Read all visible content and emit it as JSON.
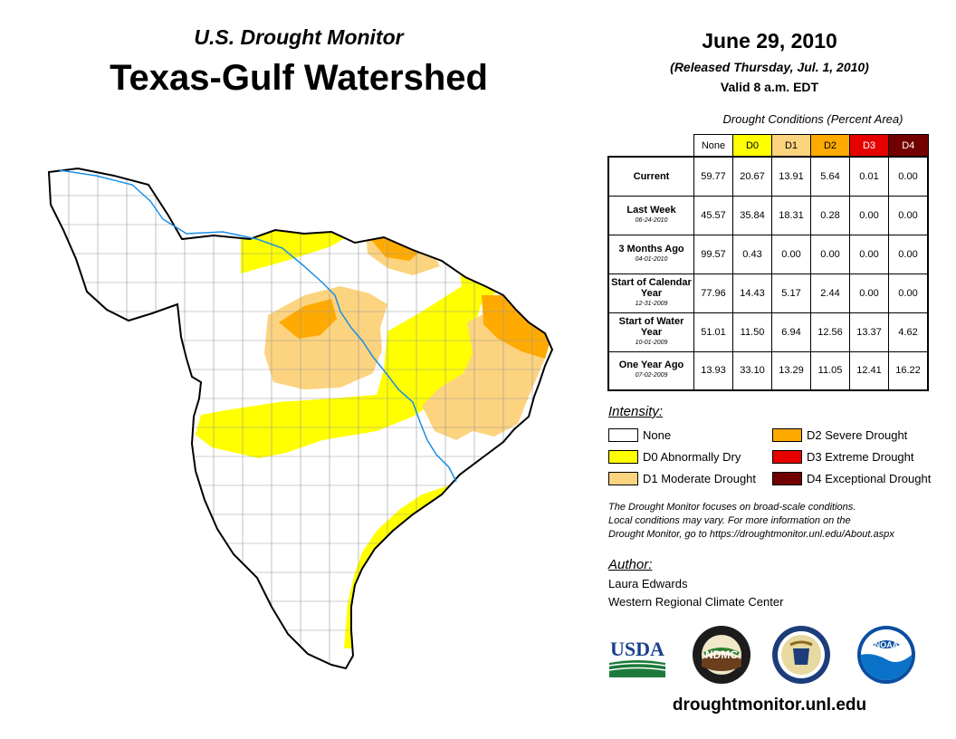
{
  "header": {
    "subtitle": "U.S. Drought Monitor",
    "title": "Texas-Gulf Watershed",
    "date": "June 29, 2010",
    "released": "(Released Thursday, Jul. 1, 2010)",
    "valid": "Valid 8 a.m. EDT"
  },
  "table": {
    "caption": "Drought Conditions (Percent Area)",
    "columns": [
      {
        "label": "None",
        "color": "#ffffff",
        "text_color": "#000000"
      },
      {
        "label": "D0",
        "color": "#ffff00",
        "text_color": "#000000"
      },
      {
        "label": "D1",
        "color": "#fcd37f",
        "text_color": "#000000"
      },
      {
        "label": "D2",
        "color": "#ffaa00",
        "text_color": "#000000"
      },
      {
        "label": "D3",
        "color": "#e60000",
        "text_color": "#ffffff"
      },
      {
        "label": "D4",
        "color": "#730000",
        "text_color": "#ffffff"
      }
    ],
    "rows": [
      {
        "label": "Current",
        "sublabel": "",
        "values": [
          "59.77",
          "20.67",
          "13.91",
          "5.64",
          "0.01",
          "0.00"
        ]
      },
      {
        "label": "Last Week",
        "sublabel": "06-24-2010",
        "values": [
          "45.57",
          "35.84",
          "18.31",
          "0.28",
          "0.00",
          "0.00"
        ]
      },
      {
        "label": "3 Months Ago",
        "sublabel": "04-01-2010",
        "values": [
          "99.57",
          "0.43",
          "0.00",
          "0.00",
          "0.00",
          "0.00"
        ]
      },
      {
        "label": "Start of Calendar Year",
        "sublabel": "12-31-2009",
        "values": [
          "77.96",
          "14.43",
          "5.17",
          "2.44",
          "0.00",
          "0.00"
        ]
      },
      {
        "label": "Start of Water Year",
        "sublabel": "10-01-2009",
        "values": [
          "51.01",
          "11.50",
          "6.94",
          "12.56",
          "13.37",
          "4.62"
        ]
      },
      {
        "label": "One Year Ago",
        "sublabel": "07-02-2009",
        "values": [
          "13.93",
          "33.10",
          "13.29",
          "11.05",
          "12.41",
          "16.22"
        ]
      }
    ]
  },
  "legend": {
    "title": "Intensity:",
    "items": [
      {
        "label": "None",
        "color": "#ffffff"
      },
      {
        "label": "D0 Abnormally Dry",
        "color": "#ffff00"
      },
      {
        "label": "D1 Moderate Drought",
        "color": "#fcd37f"
      },
      {
        "label": "D2 Severe Drought",
        "color": "#ffaa00"
      },
      {
        "label": "D3 Extreme Drought",
        "color": "#e60000"
      },
      {
        "label": "D4 Exceptional Drought",
        "color": "#730000"
      }
    ]
  },
  "note": {
    "line1": "The Drought Monitor focuses on broad-scale conditions.",
    "line2": "Local conditions may vary. For more information on the",
    "line3": "Drought Monitor, go to https://droughtmonitor.unl.edu/About.aspx"
  },
  "author": {
    "title": "Author:",
    "name": "Laura Edwards",
    "org": "Western Regional Climate Center"
  },
  "logos": {
    "usda": "USDA",
    "ndmc": "NDMC",
    "noaa": "NOAA"
  },
  "website": "droughtmonitor.unl.edu"
}
